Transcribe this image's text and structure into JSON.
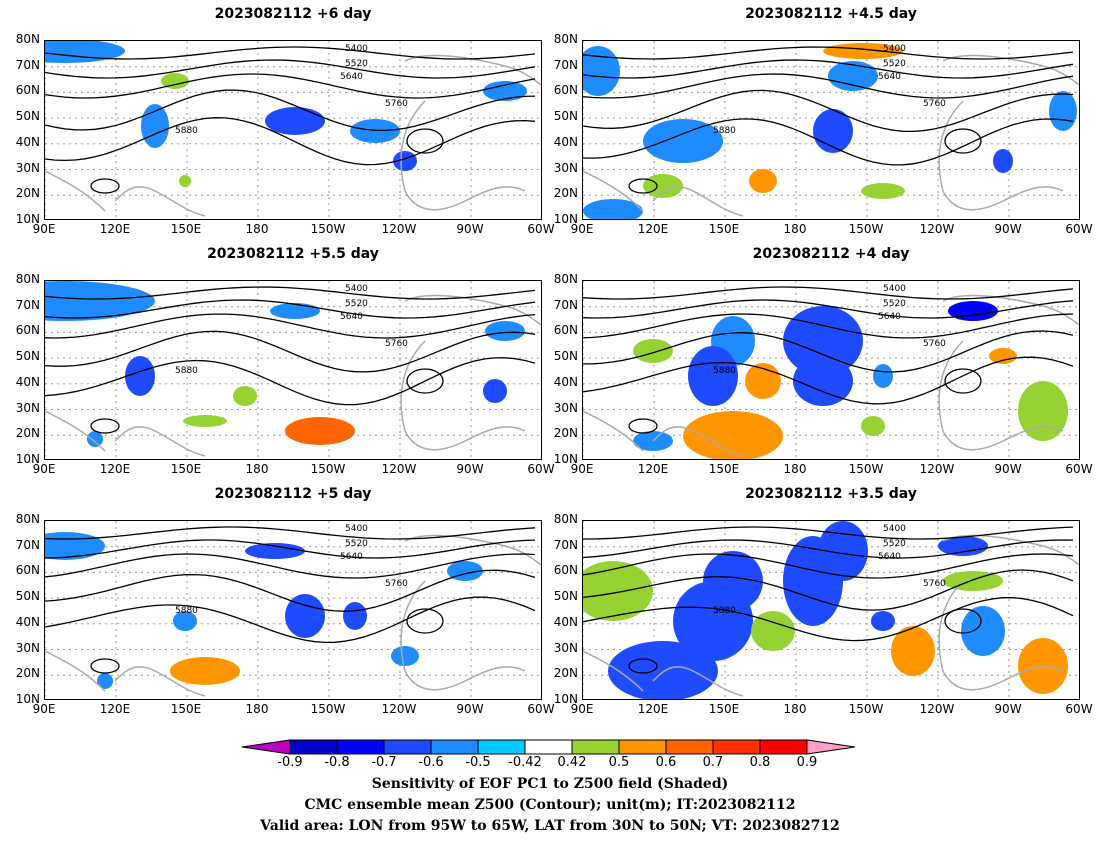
{
  "panels": [
    {
      "title": "2023082112 +6 day"
    },
    {
      "title": "2023082112 +4.5 day"
    },
    {
      "title": "2023082112 +5.5 day"
    },
    {
      "title": "2023082112 +4 day"
    },
    {
      "title": "2023082112 +5 day"
    },
    {
      "title": "2023082112 +3.5 day"
    }
  ],
  "axes": {
    "lat_ticks": [
      "80N",
      "70N",
      "60N",
      "50N",
      "40N",
      "30N",
      "20N",
      "10N"
    ],
    "lon_ticks": [
      "90E",
      "120E",
      "150E",
      "180",
      "150W",
      "120W",
      "90W",
      "60W"
    ]
  },
  "contour_levels": [
    "5400",
    "5520",
    "5640",
    "5760",
    "5880"
  ],
  "colorbar": {
    "labels": [
      "-0.9",
      "-0.8",
      "-0.7",
      "-0.6",
      "-0.5",
      "-0.42",
      "0.42",
      "0.5",
      "0.6",
      "0.7",
      "0.8",
      "0.9"
    ],
    "colors": [
      "#c000c0",
      "#0000c8",
      "#0000ff",
      "#1e4bff",
      "#1e8cff",
      "#00c8ff",
      "#ffffff",
      "#96d232",
      "#ff9600",
      "#ff6400",
      "#ff3200",
      "#ff0000",
      "#ffa0c8"
    ]
  },
  "captions": {
    "line1": "Sensitivity of EOF PC1 to Z500 field (Shaded)",
    "line2": "CMC ensemble mean Z500 (Contour); unit(m); IT:2023082112",
    "line3": "Valid area: LON from 95W to 65W, LAT from 30N to 50N; VT: 2023082712"
  }
}
